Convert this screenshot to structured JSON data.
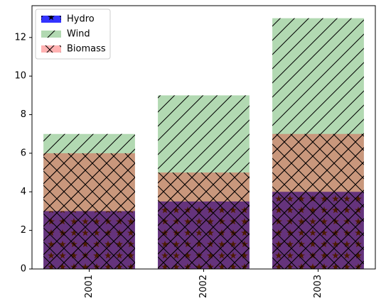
{
  "chart_data": {
    "type": "bar",
    "overlap": true,
    "categories": [
      "2001",
      "2002",
      "2003"
    ],
    "series": [
      {
        "name": "Hydro",
        "color": "#0000ff",
        "alpha": 0.8,
        "hatch": "*",
        "values": [
          3,
          3.5,
          4
        ]
      },
      {
        "name": "Wind",
        "color": "#008000",
        "alpha": 0.3,
        "hatch": "/",
        "values": [
          7,
          9,
          13
        ]
      },
      {
        "name": "Biomass",
        "color": "#ff0000",
        "alpha": 0.3,
        "hatch": "x",
        "values": [
          6,
          5,
          7
        ]
      }
    ],
    "xlim": [
      -0.5,
      2.5
    ],
    "ylim": [
      0,
      13.65
    ],
    "yticks": [
      0,
      2,
      4,
      6,
      8,
      10,
      12
    ],
    "legend": "upper left"
  }
}
